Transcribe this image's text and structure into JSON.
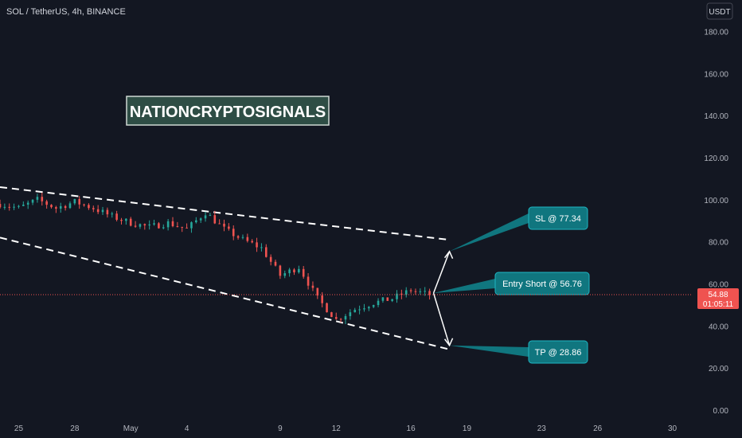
{
  "header": {
    "symbol_title": "SOL / TetherUS, 4h, BINANCE"
  },
  "axis": {
    "currency_label": "USDT"
  },
  "colors": {
    "background": "#131722",
    "up": "#26a69a",
    "down": "#ef5350",
    "axis_text": "#b2b5be",
    "callout": "#10767f",
    "callout_border": "#1fb6c3",
    "watermark_bg": "#2e4d45",
    "guide": "#ffffff"
  },
  "watermark": {
    "text": "NATIONCRYPTOSIGNALS"
  },
  "callouts": {
    "sl": "SL @ 77.34",
    "entry": "Entry Short @ 56.76",
    "tp": "TP @ 28.86"
  },
  "price_tag": {
    "price": "54.88",
    "countdown": "01:05:11"
  },
  "chart_data": {
    "type": "candlestick",
    "ylim": [
      0,
      190
    ],
    "yticks": [
      0,
      20,
      40,
      60,
      80,
      100,
      120,
      140,
      160,
      180
    ],
    "ytick_labels": [
      "0.00",
      "20.00",
      "40.00",
      "60.00",
      "80.00",
      "100.00",
      "120.00",
      "140.00",
      "160.00",
      "180.00"
    ],
    "x_domain_days": [
      "2022-04-24",
      "2022-05-31"
    ],
    "xticks": [
      {
        "date": "2022-04-25",
        "label": "25"
      },
      {
        "date": "2022-04-28",
        "label": "28"
      },
      {
        "date": "2022-05-01",
        "label": "May"
      },
      {
        "date": "2022-05-04",
        "label": "4"
      },
      {
        "date": "2022-05-09",
        "label": "9"
      },
      {
        "date": "2022-05-12",
        "label": "12"
      },
      {
        "date": "2022-05-16",
        "label": "16"
      },
      {
        "date": "2022-05-19",
        "label": "19"
      },
      {
        "date": "2022-05-23",
        "label": "23"
      },
      {
        "date": "2022-05-26",
        "label": "26"
      },
      {
        "date": "2022-05-30",
        "label": "30"
      }
    ],
    "close_path": [
      [
        "2022-04-24",
        98
      ],
      [
        "2022-04-25",
        96
      ],
      [
        "2022-04-26",
        100
      ],
      [
        "2022-04-27",
        96
      ],
      [
        "2022-04-28",
        99
      ],
      [
        "2022-04-29",
        96
      ],
      [
        "2022-04-30",
        92
      ],
      [
        "2022-05-01",
        89
      ],
      [
        "2022-05-02",
        87
      ],
      [
        "2022-05-03",
        89
      ],
      [
        "2022-05-04",
        86
      ],
      [
        "2022-05-05",
        94
      ],
      [
        "2022-05-06",
        86
      ],
      [
        "2022-05-07",
        81
      ],
      [
        "2022-05-08",
        77
      ],
      [
        "2022-05-09",
        64
      ],
      [
        "2022-05-10",
        68
      ],
      [
        "2022-05-11",
        53
      ],
      [
        "2022-05-12",
        43
      ],
      [
        "2022-05-13",
        48
      ],
      [
        "2022-05-14",
        51
      ],
      [
        "2022-05-15",
        53
      ],
      [
        "2022-05-16",
        57
      ],
      [
        "2022-05-17",
        54.88
      ]
    ],
    "channel": {
      "upper": [
        [
          "2022-04-24",
          106
        ],
        [
          "2022-05-18",
          81
        ]
      ],
      "lower": [
        [
          "2022-04-24",
          82
        ],
        [
          "2022-05-18",
          29
        ]
      ]
    },
    "levels": {
      "sl": 77.34,
      "entry": 56.76,
      "tp": 28.86,
      "last": 54.88
    }
  }
}
